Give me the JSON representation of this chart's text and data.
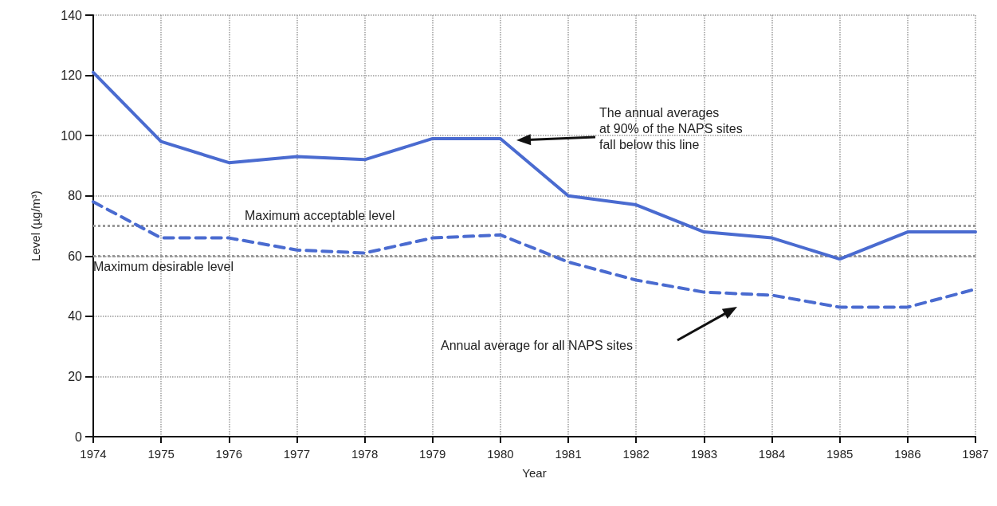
{
  "chart_data": {
    "type": "line",
    "xlabel": "Year",
    "ylabel": "Level (µg/m³)",
    "x": [
      1974,
      1975,
      1976,
      1977,
      1978,
      1979,
      1980,
      1981,
      1982,
      1983,
      1984,
      1985,
      1986,
      1987
    ],
    "series": [
      {
        "color": "#4a6bd0",
        "line_style": "solid",
        "values": [
          121,
          98,
          91,
          93,
          92,
          99,
          99,
          80,
          77,
          68,
          66,
          59,
          68,
          68
        ]
      },
      {
        "color": "#4a6bd0",
        "line_style": "dashed",
        "values": [
          78,
          66,
          66,
          62,
          61,
          66,
          67,
          58,
          52,
          48,
          47,
          43,
          43,
          49
        ]
      }
    ],
    "xlim": [
      1974,
      1987
    ],
    "xticks": [
      1974,
      1975,
      1976,
      1977,
      1978,
      1979,
      1980,
      1981,
      1982,
      1983,
      1984,
      1985,
      1986,
      1987
    ],
    "ylim": [
      0,
      140
    ],
    "yticks": [
      0,
      20,
      40,
      60,
      80,
      100,
      120,
      140
    ],
    "grid": true,
    "marker": "none",
    "ref_lines": [
      {
        "axis": "y",
        "value": 70,
        "label": "Maximum acceptable level",
        "color": "#999999",
        "line_style": "dotted"
      },
      {
        "axis": "y",
        "value": 60,
        "label": "Maximum desirable level",
        "color": "#999999",
        "line_style": "dotted"
      }
    ],
    "annotations": [
      "The annual averages\nat 90% of the NAPS sites\nfall below this line",
      "Annual average for all NAPS sites"
    ]
  }
}
